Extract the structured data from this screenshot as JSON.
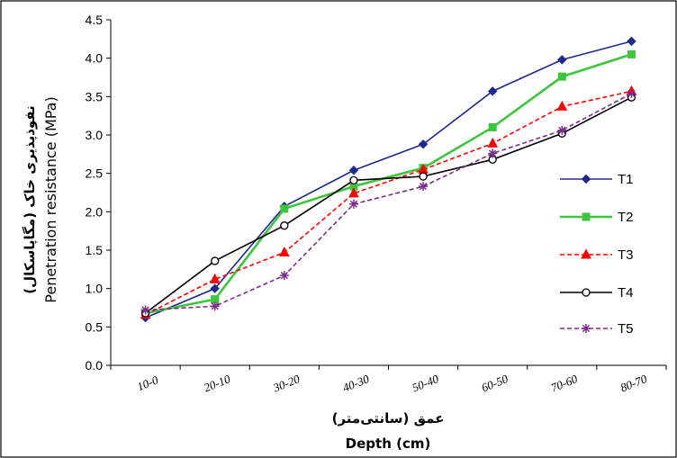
{
  "chart_data": {
    "type": "line",
    "categories": [
      "10-0",
      "20-10",
      "30-20",
      "40-30",
      "50-40",
      "60-50",
      "70-60",
      "80-70"
    ],
    "series": [
      {
        "name": "T1",
        "values": [
          0.62,
          1.0,
          2.07,
          2.54,
          2.88,
          3.57,
          3.98,
          4.22
        ],
        "color": "#1f2a8c",
        "marker": "diamond",
        "dash": "solid"
      },
      {
        "name": "T2",
        "values": [
          0.68,
          0.86,
          2.04,
          2.33,
          2.57,
          3.1,
          3.76,
          4.05
        ],
        "color": "#3cc63c",
        "marker": "square",
        "dash": "solid"
      },
      {
        "name": "T3",
        "values": [
          0.66,
          1.12,
          1.47,
          2.24,
          2.55,
          2.89,
          3.37,
          3.57
        ],
        "color": "#ff0000",
        "marker": "triangle",
        "dash": "dashed"
      },
      {
        "name": "T4",
        "values": [
          0.68,
          1.36,
          1.82,
          2.41,
          2.46,
          2.68,
          3.02,
          3.49
        ],
        "color": "#000000",
        "marker": "circle",
        "dash": "solid"
      },
      {
        "name": "T5",
        "values": [
          0.72,
          0.77,
          1.17,
          2.1,
          2.33,
          2.76,
          3.06,
          3.54
        ],
        "color": "#7b2c8c",
        "marker": "star",
        "dash": "dashed"
      }
    ],
    "ylim": [
      0.0,
      4.5
    ],
    "yticks": [
      "0.0",
      "0.5",
      "1.0",
      "1.5",
      "2.0",
      "2.5",
      "3.0",
      "3.5",
      "4.0",
      "4.5"
    ],
    "ylabel_fa": "نفوذپذیری خاک (مگاپاسکال)",
    "ylabel_en": "Penetration resistance (MPa)",
    "xlabel_fa": "عمق (سانتی‌متر)",
    "xlabel_en": "Depth (cm)",
    "grid": false,
    "legend_position": "right"
  }
}
